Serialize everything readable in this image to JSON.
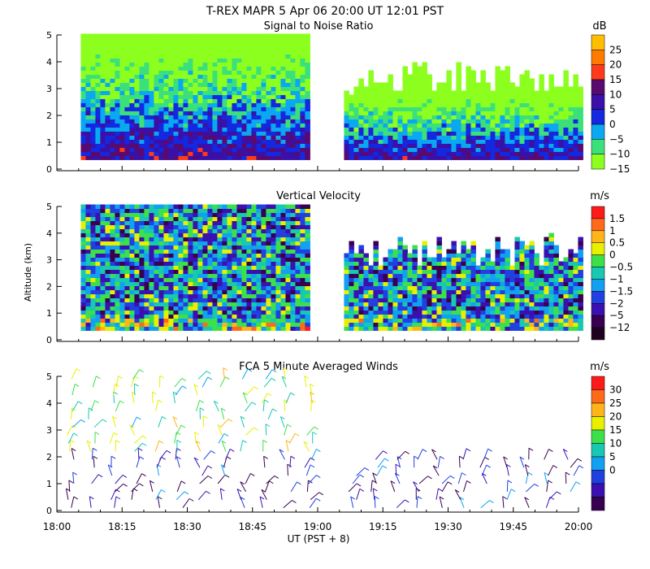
{
  "header": {
    "title": "T-REX  MAPR  5 Apr 06  20:00 UT  12:01  PST"
  },
  "chart_data": [
    {
      "type": "heatmap",
      "title": "Signal to Noise Ratio",
      "ylabel": "",
      "ylim": [
        0,
        5
      ],
      "yticks": [
        "0",
        "1",
        "2",
        "3",
        "4",
        "5"
      ],
      "colorbar_unit": "dB",
      "colorbar_labels": [
        "25",
        "20",
        "15",
        "10",
        "5",
        "0",
        "−5",
        "−10",
        "−15"
      ],
      "colorbar_colors": [
        "#ffbf00",
        "#ff7a00",
        "#ff3a1a",
        "#5a0a6e",
        "#3a10a8",
        "#1428e0",
        "#0aa8f0",
        "#3ce07a",
        "#8cff1e"
      ],
      "gap_x_minutes": [
        58,
        65
      ],
      "description_bands": "data region from ~0.35 km to ~5 km (before gap), ~0.35 to ~3.8 km (after gap)"
    },
    {
      "type": "heatmap",
      "title": "Vertical Velocity",
      "ylabel": "Altitude  (km)",
      "ylim": [
        0,
        5
      ],
      "yticks": [
        "0",
        "1",
        "2",
        "3",
        "4",
        "5"
      ],
      "colorbar_unit": "m/s",
      "colorbar_labels": [
        "1.5",
        "1",
        "0.5",
        "0",
        "−0.5",
        "−1",
        "−1.5",
        "−2",
        "−5",
        "−12"
      ],
      "colorbar_colors": [
        "#ff1a1a",
        "#ff6a1a",
        "#ffb41a",
        "#e8f000",
        "#3ce04a",
        "#18c8b0",
        "#12a0f0",
        "#2040e0",
        "#3a10b0",
        "#380050",
        "#200020"
      ],
      "gap_x_minutes": [
        58,
        65
      ]
    },
    {
      "type": "scatter",
      "title": "FCA 5 Minute Averaged Winds",
      "ylabel": "",
      "ylim": [
        0,
        5
      ],
      "yticks": [
        "0",
        "1",
        "2",
        "3",
        "4",
        "5"
      ],
      "colorbar_unit": "m/s",
      "colorbar_labels": [
        "30",
        "25",
        "20",
        "15",
        "10",
        "5",
        "0"
      ],
      "colorbar_colors": [
        "#ff1a1a",
        "#ff6a1a",
        "#ffb41a",
        "#e8f000",
        "#3ce04a",
        "#18c8b0",
        "#12a0f0",
        "#2040e0",
        "#3a10b0",
        "#380050"
      ],
      "barb_times_minutes": [
        3,
        8,
        13,
        18,
        23,
        28,
        33,
        38,
        43,
        48,
        53,
        58,
        68,
        73,
        78,
        83,
        88,
        93,
        98,
        103,
        108,
        113,
        118
      ]
    }
  ],
  "x_axis": {
    "xlim_minutes": [
      0,
      120
    ],
    "ticks": [
      "18:00",
      "18:15",
      "18:30",
      "18:45",
      "19:00",
      "19:15",
      "19:30",
      "19:45",
      "20:00"
    ],
    "xlabel": "UT  (PST + 8)"
  }
}
